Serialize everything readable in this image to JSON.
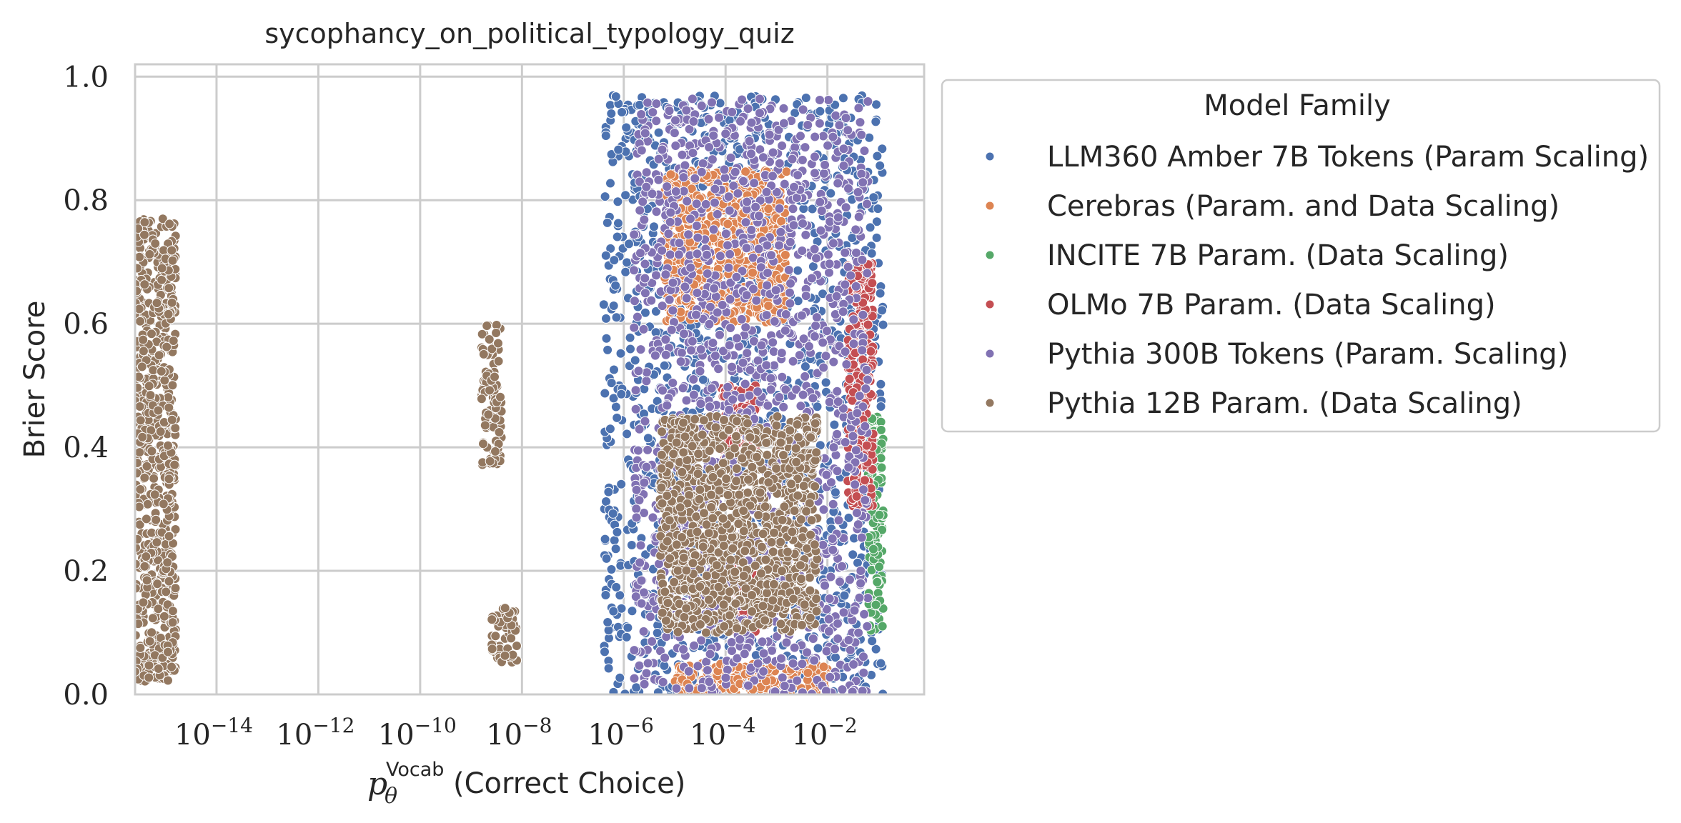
{
  "chart_data": {
    "type": "scatter",
    "title": "sycophancy_on_political_typology_quiz",
    "xlabel": {
      "prefix": "p",
      "sub": "θ",
      "sup": "Vocab",
      "text": "(Correct Choice)"
    },
    "ylabel": "Brier Score",
    "x_scale": "log",
    "xlim_log10": [
      -15.6,
      -0.1
    ],
    "ylim": [
      0.0,
      1.02
    ],
    "x_ticks": [
      {
        "exp": -14,
        "base": "10",
        "power": "−14"
      },
      {
        "exp": -12,
        "base": "10",
        "power": "−12"
      },
      {
        "exp": -10,
        "base": "10",
        "power": "−10"
      },
      {
        "exp": -8,
        "base": "10",
        "power": "−8"
      },
      {
        "exp": -6,
        "base": "10",
        "power": "−6"
      },
      {
        "exp": -4,
        "base": "10",
        "power": "−4"
      },
      {
        "exp": -2,
        "base": "10",
        "power": "−2"
      }
    ],
    "y_ticks": [
      {
        "value": 0.0,
        "label": "0.0"
      },
      {
        "value": 0.2,
        "label": "0.2"
      },
      {
        "value": 0.4,
        "label": "0.4"
      },
      {
        "value": 0.6,
        "label": "0.6"
      },
      {
        "value": 0.8,
        "label": "0.8"
      },
      {
        "value": 1.0,
        "label": "1.0"
      }
    ],
    "grid": true,
    "legend": {
      "title": "Model Family",
      "placement": "outside-right-top"
    },
    "series": [
      {
        "name": "LLM360 Amber 7B Tokens (Param Scaling)",
        "color": "#4c72b0",
        "regions": [
          {
            "log10_x": [
              -6.4,
              -0.9
            ],
            "y": [
              0.0,
              0.97
            ]
          }
        ]
      },
      {
        "name": "Cerebras (Param. and Data Scaling)",
        "color": "#dd8452",
        "regions": [
          {
            "log10_x": [
              -5.2,
              -2.8
            ],
            "y": [
              0.6,
              0.85
            ]
          },
          {
            "log10_x": [
              -5.0,
              -2.0
            ],
            "y": [
              0.0,
              0.05
            ]
          }
        ]
      },
      {
        "name": "INCITE 7B Param. (Data Scaling)",
        "color": "#55a868",
        "regions": [
          {
            "log10_x": [
              -1.2,
              -0.9
            ],
            "y": [
              0.1,
              0.45
            ]
          }
        ]
      },
      {
        "name": "OLMo 7B Param. (Data Scaling)",
        "color": "#c44e52",
        "regions": [
          {
            "log10_x": [
              -4.1,
              -3.4
            ],
            "y": [
              0.38,
              0.5
            ]
          },
          {
            "log10_x": [
              -3.9,
              -3.3
            ],
            "y": [
              0.1,
              0.22
            ]
          },
          {
            "log10_x": [
              -1.6,
              -1.1
            ],
            "y": [
              0.3,
              0.7
            ]
          }
        ]
      },
      {
        "name": "Pythia 300B Tokens (Param. Scaling)",
        "color": "#8172b3",
        "regions": [
          {
            "log10_x": [
              -5.8,
              -1.2
            ],
            "y": [
              0.0,
              0.97
            ]
          }
        ]
      },
      {
        "name": "Pythia 12B Param. (Data Scaling)",
        "color": "#937860",
        "regions": [
          {
            "log10_x": [
              -15.6,
              -14.8
            ],
            "y": [
              0.02,
              0.77
            ]
          },
          {
            "log10_x": [
              -8.8,
              -8.4
            ],
            "y": [
              0.37,
              0.6
            ]
          },
          {
            "log10_x": [
              -8.6,
              -8.1
            ],
            "y": [
              0.05,
              0.14
            ]
          },
          {
            "log10_x": [
              -5.3,
              -2.2
            ],
            "y": [
              0.1,
              0.45
            ]
          }
        ]
      }
    ]
  }
}
